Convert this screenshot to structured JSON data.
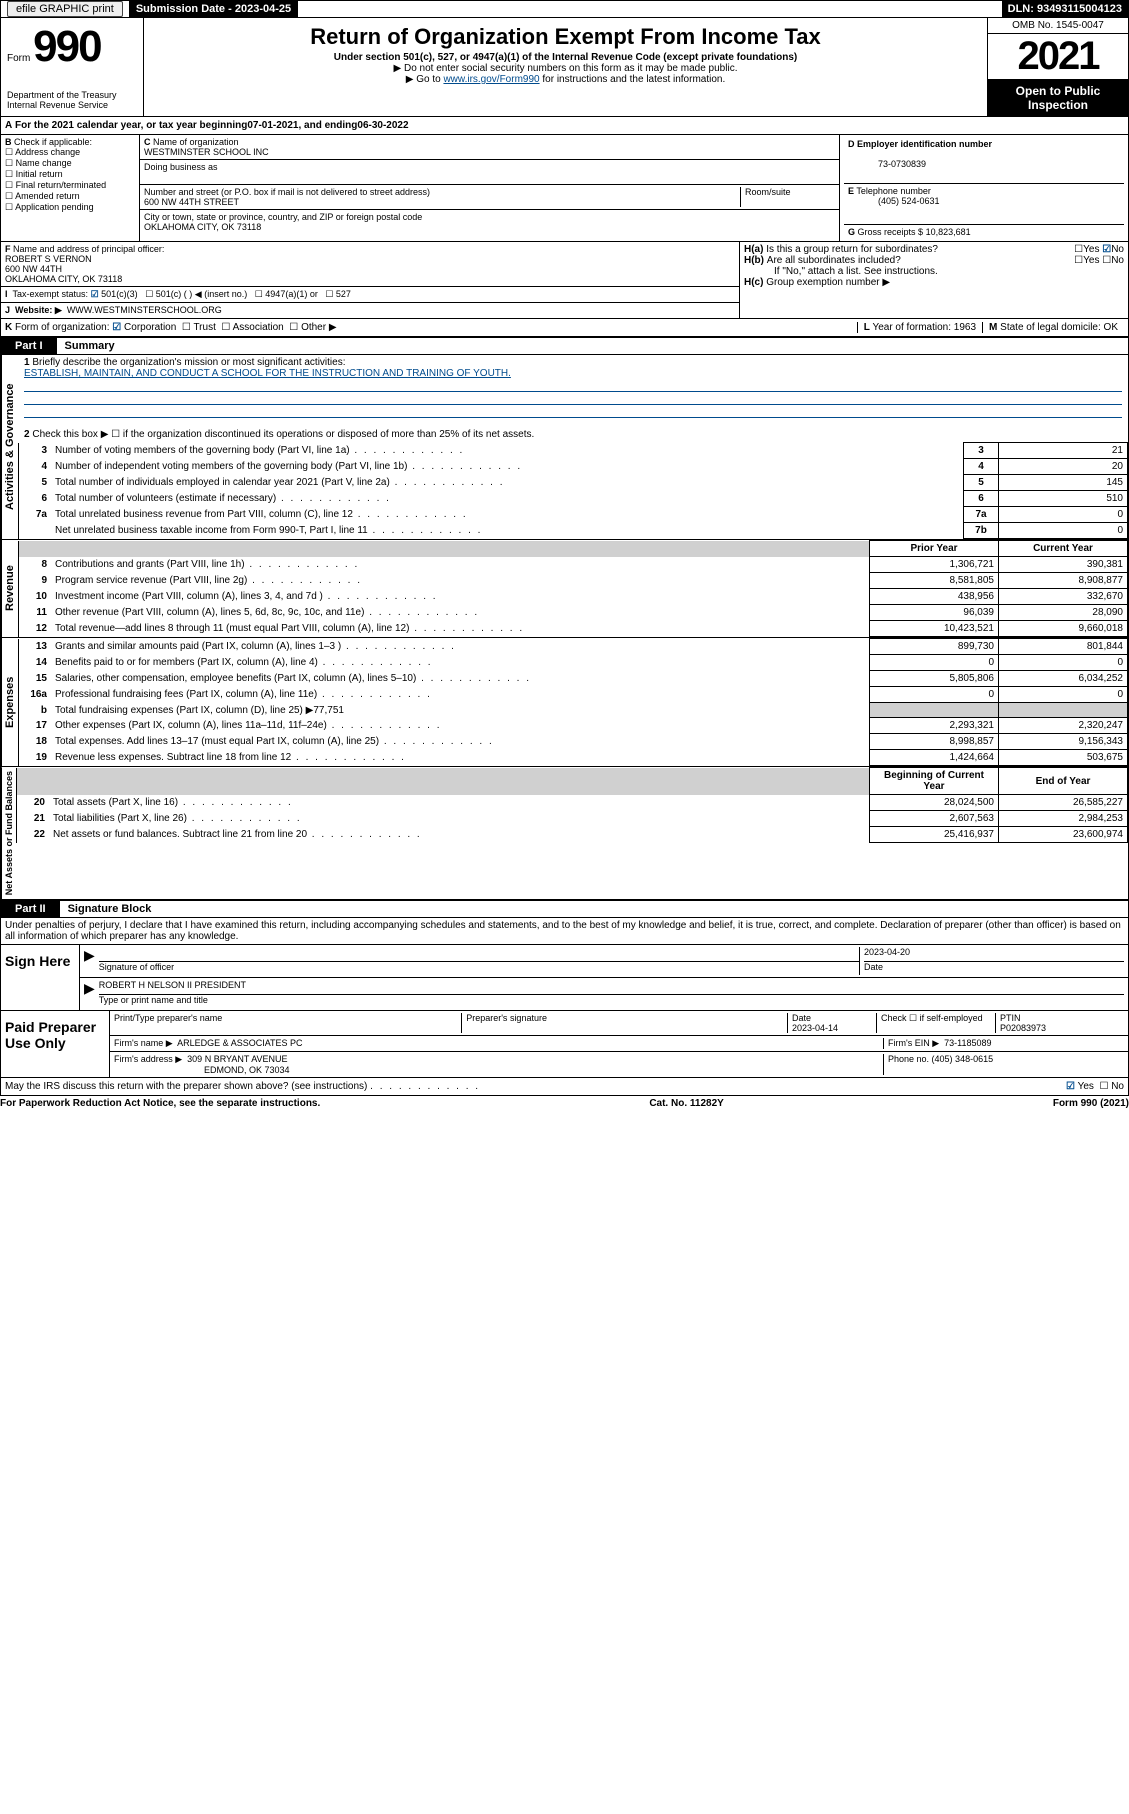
{
  "topbar": {
    "efile": "efile GRAPHIC print",
    "subdate_label": "Submission Date - ",
    "subdate": "2023-04-25",
    "dln_label": "DLN: ",
    "dln": "93493115004123"
  },
  "header": {
    "form_word": "Form",
    "form_num": "990",
    "dept": "Department of the Treasury\nInternal Revenue Service",
    "title": "Return of Organization Exempt From Income Tax",
    "sub": "Under section 501(c), 527, or 4947(a)(1) of the Internal Revenue Code (except private foundations)",
    "note1": "▶ Do not enter social security numbers on this form as it may be made public.",
    "note2a": "▶ Go to ",
    "note2_link": "www.irs.gov/Form990",
    "note2b": " for instructions and the latest information.",
    "omb": "OMB No. 1545-0047",
    "year": "2021",
    "open": "Open to Public Inspection"
  },
  "A": {
    "text_a": "For the 2021 calendar year, or tax year beginning ",
    "begin": "07-01-2021",
    "text_b": " , and ending ",
    "end": "06-30-2022"
  },
  "B": {
    "label": "Check if applicable:",
    "items": [
      "Address change",
      "Name change",
      "Initial return",
      "Final return/terminated",
      "Amended return",
      "Application pending"
    ]
  },
  "C": {
    "name_label": "Name of organization",
    "name": "WESTMINSTER SCHOOL INC",
    "dba_label": "Doing business as",
    "addr_label": "Number and street (or P.O. box if mail is not delivered to street address)",
    "room_label": "Room/suite",
    "addr": "600 NW 44TH STREET",
    "city_label": "City or town, state or province, country, and ZIP or foreign postal code",
    "city": "OKLAHOMA CITY, OK  73118"
  },
  "D": {
    "label": "Employer identification number",
    "val": "73-0730839"
  },
  "E": {
    "label": "Telephone number",
    "val": "(405) 524-0631"
  },
  "G": {
    "label": "Gross receipts $",
    "val": "10,823,681"
  },
  "F": {
    "label": "Name and address of principal officer:",
    "name": "ROBERT S VERNON",
    "addr1": "600 NW 44TH",
    "addr2": "OKLAHOMA CITY, OK  73118"
  },
  "H": {
    "a": "Is this a group return for subordinates?",
    "b": "Are all subordinates included?",
    "b_note": "If \"No,\" attach a list. See instructions.",
    "c": "Group exemption number ▶",
    "yes": "Yes",
    "no": "No"
  },
  "I": {
    "label": "Tax-exempt status:",
    "opts": [
      "501(c)(3)",
      "501(c) (  ) ◀ (insert no.)",
      "4947(a)(1) or",
      "527"
    ]
  },
  "J": {
    "label": "Website: ▶",
    "val": "WWW.WESTMINSTERSCHOOL.ORG"
  },
  "K": {
    "label": "Form of organization:",
    "opts": [
      "Corporation",
      "Trust",
      "Association",
      "Other ▶"
    ]
  },
  "L": {
    "label": "Year of formation: ",
    "val": "1963"
  },
  "M": {
    "label": "State of legal domicile: ",
    "val": "OK"
  },
  "part1": {
    "tab": "Part I",
    "title": "Summary",
    "side1": "Activities & Governance",
    "side2": "Revenue",
    "side3": "Expenses",
    "side4": "Net Assets or Fund Balances",
    "q1": "Briefly describe the organization's mission or most significant activities:",
    "q1_ans": "ESTABLISH, MAINTAIN, AND CONDUCT A SCHOOL FOR THE INSTRUCTION AND TRAINING OF YOUTH.",
    "q2": "Check this box ▶ ☐  if the organization discontinued its operations or disposed of more than 25% of its net assets.",
    "rows_gov": [
      {
        "n": "3",
        "t": "Number of voting members of the governing body (Part VI, line 1a)",
        "box": "3",
        "v": "21"
      },
      {
        "n": "4",
        "t": "Number of independent voting members of the governing body (Part VI, line 1b)",
        "box": "4",
        "v": "20"
      },
      {
        "n": "5",
        "t": "Total number of individuals employed in calendar year 2021 (Part V, line 2a)",
        "box": "5",
        "v": "145"
      },
      {
        "n": "6",
        "t": "Total number of volunteers (estimate if necessary)",
        "box": "6",
        "v": "510"
      },
      {
        "n": "7a",
        "t": "Total unrelated business revenue from Part VIII, column (C), line 12",
        "box": "7a",
        "v": "0"
      },
      {
        "n": "",
        "t": "Net unrelated business taxable income from Form 990-T, Part I, line 11",
        "box": "7b",
        "v": "0"
      }
    ],
    "hdr_prior": "Prior Year",
    "hdr_curr": "Current Year",
    "rows_rev": [
      {
        "n": "8",
        "t": "Contributions and grants (Part VIII, line 1h)",
        "p": "1,306,721",
        "c": "390,381"
      },
      {
        "n": "9",
        "t": "Program service revenue (Part VIII, line 2g)",
        "p": "8,581,805",
        "c": "8,908,877"
      },
      {
        "n": "10",
        "t": "Investment income (Part VIII, column (A), lines 3, 4, and 7d )",
        "p": "438,956",
        "c": "332,670"
      },
      {
        "n": "11",
        "t": "Other revenue (Part VIII, column (A), lines 5, 6d, 8c, 9c, 10c, and 11e)",
        "p": "96,039",
        "c": "28,090"
      },
      {
        "n": "12",
        "t": "Total revenue—add lines 8 through 11 (must equal Part VIII, column (A), line 12)",
        "p": "10,423,521",
        "c": "9,660,018"
      }
    ],
    "rows_exp": [
      {
        "n": "13",
        "t": "Grants and similar amounts paid (Part IX, column (A), lines 1–3 )",
        "p": "899,730",
        "c": "801,844"
      },
      {
        "n": "14",
        "t": "Benefits paid to or for members (Part IX, column (A), line 4)",
        "p": "0",
        "c": "0"
      },
      {
        "n": "15",
        "t": "Salaries, other compensation, employee benefits (Part IX, column (A), lines 5–10)",
        "p": "5,805,806",
        "c": "6,034,252"
      },
      {
        "n": "16a",
        "t": "Professional fundraising fees (Part IX, column (A), line 11e)",
        "p": "0",
        "c": "0"
      },
      {
        "n": "b",
        "t": "Total fundraising expenses (Part IX, column (D), line 25) ▶77,751",
        "p": "",
        "c": "",
        "shade": true
      },
      {
        "n": "17",
        "t": "Other expenses (Part IX, column (A), lines 11a–11d, 11f–24e)",
        "p": "2,293,321",
        "c": "2,320,247"
      },
      {
        "n": "18",
        "t": "Total expenses. Add lines 13–17 (must equal Part IX, column (A), line 25)",
        "p": "8,998,857",
        "c": "9,156,343"
      },
      {
        "n": "19",
        "t": "Revenue less expenses. Subtract line 18 from line 12",
        "p": "1,424,664",
        "c": "503,675"
      }
    ],
    "hdr_begin": "Beginning of Current Year",
    "hdr_end": "End of Year",
    "rows_net": [
      {
        "n": "20",
        "t": "Total assets (Part X, line 16)",
        "p": "28,024,500",
        "c": "26,585,227"
      },
      {
        "n": "21",
        "t": "Total liabilities (Part X, line 26)",
        "p": "2,607,563",
        "c": "2,984,253"
      },
      {
        "n": "22",
        "t": "Net assets or fund balances. Subtract line 21 from line 20",
        "p": "25,416,937",
        "c": "23,600,974"
      }
    ]
  },
  "part2": {
    "tab": "Part II",
    "title": "Signature Block",
    "decl": "Under penalties of perjury, I declare that I have examined this return, including accompanying schedules and statements, and to the best of my knowledge and belief, it is true, correct, and complete. Declaration of preparer (other than officer) is based on all information of which preparer has any knowledge.",
    "sign_here": "Sign Here",
    "sig_officer": "Signature of officer",
    "sig_date": "2023-04-20",
    "date_label": "Date",
    "officer_name": "ROBERT H NELSON II PRESIDENT",
    "officer_sub": "Type or print name and title",
    "paid": "Paid Preparer Use Only",
    "prep_name_label": "Print/Type preparer's name",
    "prep_sig_label": "Preparer's signature",
    "prep_date_label": "Date",
    "prep_date": "2023-04-14",
    "check_label": "Check ☐ if self-employed",
    "ptin_label": "PTIN",
    "ptin": "P02083973",
    "firm_name_label": "Firm's name    ▶",
    "firm_name": "ARLEDGE & ASSOCIATES PC",
    "firm_ein_label": "Firm's EIN ▶",
    "firm_ein": "73-1185089",
    "firm_addr_label": "Firm's address ▶",
    "firm_addr1": "309 N BRYANT AVENUE",
    "firm_addr2": "EDMOND, OK  73034",
    "firm_phone_label": "Phone no. ",
    "firm_phone": "(405) 348-0615",
    "discuss": "May the IRS discuss this return with the preparer shown above? (see instructions)",
    "yes": "Yes",
    "no": "No"
  },
  "footer": {
    "left": "For Paperwork Reduction Act Notice, see the separate instructions.",
    "mid": "Cat. No. 11282Y",
    "right": "Form 990 (2021)"
  }
}
